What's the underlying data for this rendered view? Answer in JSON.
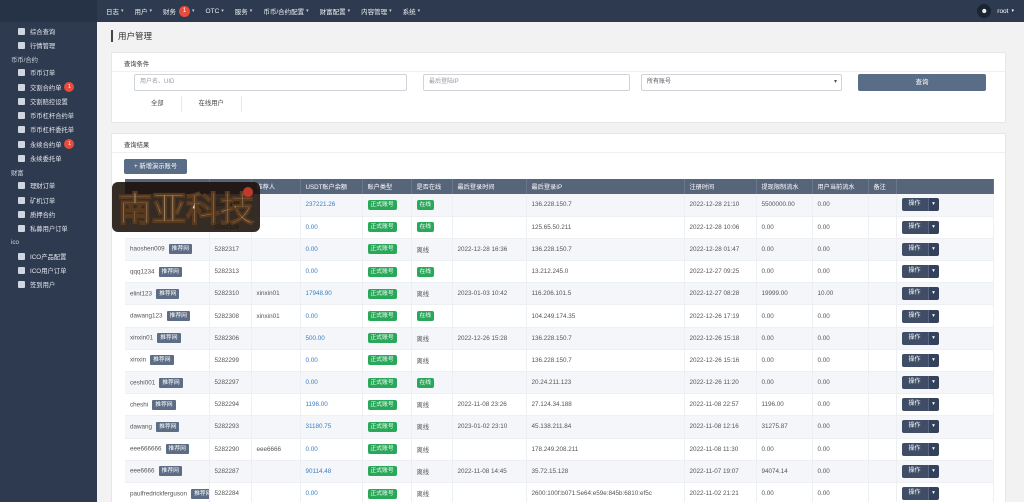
{
  "topbar": {
    "nav": [
      {
        "label": "日志",
        "caret": "▾"
      },
      {
        "label": "用户",
        "caret": "▾"
      },
      {
        "label": "财务",
        "badge": "1",
        "caret": "▾"
      },
      {
        "label": "OTC",
        "caret": "▾"
      },
      {
        "label": "服务",
        "caret": "▾"
      },
      {
        "label": "币币/合约配置",
        "caret": "▾"
      },
      {
        "label": "财富配置",
        "caret": "▾"
      },
      {
        "label": "内容管理",
        "caret": "▾"
      },
      {
        "label": "系统",
        "caret": "▾"
      }
    ],
    "user": "root",
    "user_caret": "▾"
  },
  "sidebar": {
    "items": [
      {
        "type": "item",
        "label": "综合查询"
      },
      {
        "type": "item",
        "label": "行情管理"
      },
      {
        "type": "group",
        "label": "币币/合约"
      },
      {
        "type": "item",
        "label": "币币订单"
      },
      {
        "type": "item",
        "label": "交割合约单",
        "badge": "1"
      },
      {
        "type": "item",
        "label": "交割赔控设置"
      },
      {
        "type": "item",
        "label": "币币杠杆合约单"
      },
      {
        "type": "item",
        "label": "币币杠杆委托单"
      },
      {
        "type": "item",
        "label": "永续合约单",
        "badge": "1"
      },
      {
        "type": "item",
        "label": "永续委托单"
      },
      {
        "type": "group",
        "label": "财富"
      },
      {
        "type": "item",
        "label": "理财订单"
      },
      {
        "type": "item",
        "label": "矿机订单"
      },
      {
        "type": "item",
        "label": "质押合约"
      },
      {
        "type": "item",
        "label": "私募用户订单"
      },
      {
        "type": "group",
        "label": "ico"
      },
      {
        "type": "item",
        "label": "ICO产品配置"
      },
      {
        "type": "item",
        "label": "ICO用户订单"
      },
      {
        "type": "item",
        "label": "签到用户"
      }
    ]
  },
  "page": {
    "title": "用户管理"
  },
  "query": {
    "title": "查询条件",
    "user_placeholder": "用户名、UID",
    "ip_placeholder": "最后登陆IP",
    "account_select": "所有账号",
    "account_chev": "▾",
    "search_button": "查询",
    "tabs": [
      "全部",
      "在线用户"
    ]
  },
  "results": {
    "title": "查询结果",
    "add_button": "+ 新增演示账号",
    "columns": [
      "",
      "",
      "推荐人",
      "USDT账户余额",
      "账户类型",
      "是否在线",
      "最后登录时间",
      "最后登录IP",
      "注册时间",
      "提现限制流水",
      "用户当前流水",
      "备注",
      ""
    ],
    "rec_tag": "推荐网",
    "action_label": "操作",
    "action_caret": "▾",
    "rows": [
      {
        "name": "",
        "uid": "5282329",
        "ref": "",
        "usdt": "237221.26",
        "type": "正式账号",
        "online": "在线",
        "last_time": "",
        "ip": "136.228.150.7",
        "reg": "2022-12-28 21:10",
        "limit": "5500000.00",
        "cur": "0.00"
      },
      {
        "name": "",
        "uid": "5282326",
        "ref": "",
        "usdt": "0.00",
        "type": "正式账号",
        "online": "在线",
        "last_time": "",
        "ip": "125.65.50.211",
        "reg": "2022-12-28 10:06",
        "limit": "0.00",
        "cur": "0.00"
      },
      {
        "name": "haoshen009",
        "uid": "5282317",
        "ref": "",
        "usdt": "0.00",
        "type": "正式账号",
        "online": "离线",
        "last_time": "2022-12-28 16:36",
        "ip": "136.228.150.7",
        "reg": "2022-12-28 01:47",
        "limit": "0.00",
        "cur": "0.00"
      },
      {
        "name": "qqq1234",
        "uid": "5282313",
        "ref": "",
        "usdt": "0.00",
        "type": "正式账号",
        "online": "在线",
        "last_time": "",
        "ip": "13.212.245.0",
        "reg": "2022-12-27 09:25",
        "limit": "0.00",
        "cur": "0.00"
      },
      {
        "name": "elint123",
        "uid": "5282310",
        "ref": "xinxin01",
        "usdt": "17948.90",
        "type": "正式账号",
        "online": "离线",
        "last_time": "2023-01-03 10:42",
        "ip": "116.206.101.5",
        "reg": "2022-12-27 08:28",
        "limit": "19999.00",
        "cur": "10.00"
      },
      {
        "name": "dawang123",
        "uid": "5282308",
        "ref": "xinxin01",
        "usdt": "0.00",
        "type": "正式账号",
        "online": "在线",
        "last_time": "",
        "ip": "104.249.174.35",
        "reg": "2022-12-26 17:19",
        "limit": "0.00",
        "cur": "0.00"
      },
      {
        "name": "xinxin01",
        "uid": "5282306",
        "ref": "",
        "usdt": "500.00",
        "type": "正式账号",
        "online": "离线",
        "last_time": "2022-12-26 15:28",
        "ip": "136.228.150.7",
        "reg": "2022-12-26 15:18",
        "limit": "0.00",
        "cur": "0.00"
      },
      {
        "name": "xinxin",
        "uid": "5282299",
        "ref": "",
        "usdt": "0.00",
        "type": "正式账号",
        "online": "离线",
        "last_time": "",
        "ip": "136.228.150.7",
        "reg": "2022-12-26 15:16",
        "limit": "0.00",
        "cur": "0.00"
      },
      {
        "name": "ceshi001",
        "uid": "5282297",
        "ref": "",
        "usdt": "0.00",
        "type": "正式账号",
        "online": "在线",
        "last_time": "",
        "ip": "20.24.211.123",
        "reg": "2022-12-26 11:20",
        "limit": "0.00",
        "cur": "0.00"
      },
      {
        "name": "cheshi",
        "uid": "5282294",
        "ref": "",
        "usdt": "1196.00",
        "type": "正式账号",
        "online": "离线",
        "last_time": "2022-11-08 23:26",
        "ip": "27.124.34.188",
        "reg": "2022-11-08 22:57",
        "limit": "1196.00",
        "cur": "0.00"
      },
      {
        "name": "dawang",
        "uid": "5282293",
        "ref": "",
        "usdt": "31180.75",
        "type": "正式账号",
        "online": "离线",
        "last_time": "2023-01-02 23:10",
        "ip": "45.138.211.84",
        "reg": "2022-11-08 12:16",
        "limit": "31275.87",
        "cur": "0.00"
      },
      {
        "name": "eee666666",
        "uid": "5282290",
        "ref": "eee6666",
        "usdt": "0.00",
        "type": "正式账号",
        "online": "离线",
        "last_time": "",
        "ip": "178.249.208.211",
        "reg": "2022-11-08 11:30",
        "limit": "0.00",
        "cur": "0.00"
      },
      {
        "name": "eee6666",
        "uid": "5282287",
        "ref": "",
        "usdt": "90114.48",
        "type": "正式账号",
        "online": "离线",
        "last_time": "2022-11-08 14:45",
        "ip": "35.72.15.128",
        "reg": "2022-11-07 19:07",
        "limit": "94074.14",
        "cur": "0.00"
      },
      {
        "name": "paulfredrickferguson",
        "uid": "5282284",
        "ref": "",
        "usdt": "0.00",
        "type": "正式账号",
        "online": "离线",
        "last_time": "",
        "ip": "2600:100f:b071:5e64:e59e:845b:6810:ef5c",
        "reg": "2022-11-02 21:21",
        "limit": "0.00",
        "cur": "0.00"
      }
    ]
  },
  "logo": {
    "text": "南亚科技"
  },
  "colors": {
    "sidebar": "#2e3a4f",
    "header": "#57657b",
    "online_tag": "#2aa85a",
    "badge": "#e74c3c",
    "link": "#3b7fc4",
    "action": "#3f4d66"
  }
}
